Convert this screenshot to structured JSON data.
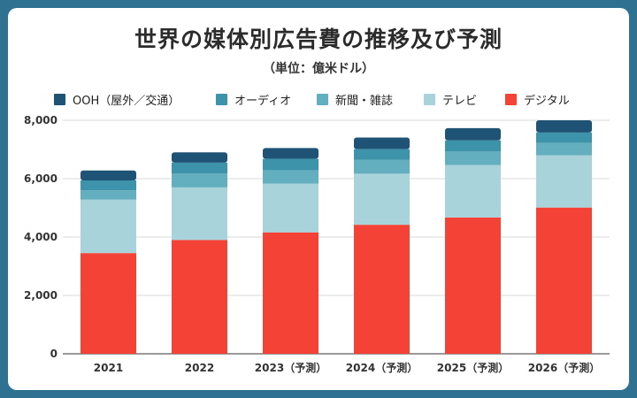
{
  "chart_data": {
    "type": "bar",
    "stacked": true,
    "title": "世界の媒体別広告費の推移及び予測",
    "subtitle": "（単位：億米ドル）",
    "categories": [
      "2021",
      "2022",
      "2023（予測）",
      "2024（予測）",
      "2025（予測）",
      "2026（予測）"
    ],
    "series": [
      {
        "name": "デジタル",
        "color": "#f44336",
        "values": [
          3450,
          3900,
          4160,
          4420,
          4670,
          5010
        ]
      },
      {
        "name": "テレビ",
        "color": "#a8d3da",
        "values": [
          1830,
          1800,
          1670,
          1750,
          1800,
          1790
        ]
      },
      {
        "name": "新聞・雑誌",
        "color": "#63afc0",
        "values": [
          320,
          480,
          460,
          470,
          460,
          430
        ]
      },
      {
        "name": "オーディオ",
        "color": "#3d93a9",
        "values": [
          340,
          370,
          390,
          370,
          380,
          350
        ]
      },
      {
        "name": "OOH（屋外／交通）",
        "color": "#1f5376",
        "values": [
          340,
          350,
          370,
          400,
          420,
          420
        ]
      }
    ],
    "legend_order": [
      "OOH（屋外／交通）",
      "オーディオ",
      "新聞・雑誌",
      "テレビ",
      "デジタル"
    ],
    "ylim": [
      0,
      8000
    ],
    "yticks": [
      0,
      2000,
      4000,
      6000,
      8000
    ],
    "ytick_labels": [
      "0",
      "2,000",
      "4,000",
      "6,000",
      "8,000"
    ],
    "grid": true,
    "legend_position": "top-left"
  }
}
